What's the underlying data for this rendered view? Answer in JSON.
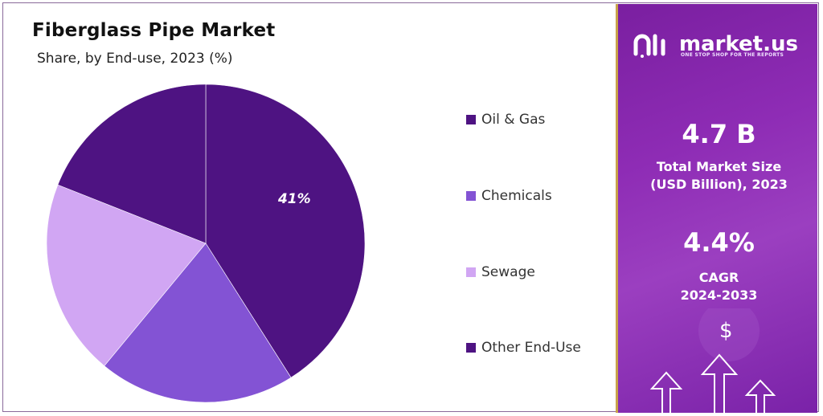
{
  "chart_data": {
    "type": "pie",
    "title": "Fiberglass Pipe Market",
    "subtitle": "Share, by End-use, 2023 (%)",
    "categories": [
      "Oil & Gas",
      "Chemicals",
      "Sewage",
      "Other End-Use"
    ],
    "values": [
      41,
      20,
      20,
      19
    ],
    "data_labels": [
      "41%",
      "",
      "",
      ""
    ],
    "colors": [
      "#4e1382",
      "#8353d4",
      "#d1a6f3",
      "#4e1382"
    ],
    "legend": {
      "placement": "right"
    }
  },
  "sidebar": {
    "brand": "market.us",
    "tagline": "ONE STOP SHOP FOR THE REPORTS",
    "market_size_value": "4.7 B",
    "market_size_label_line1": "Total Market Size",
    "market_size_label_line2": "(USD Billion), 2023",
    "cagr_value": "4.4%",
    "cagr_label_line1": "CAGR",
    "cagr_label_line2": "2024-2033",
    "dollar_symbol": "$",
    "accent_color": "#8e2cb5",
    "border_color": "#c9a24a"
  }
}
